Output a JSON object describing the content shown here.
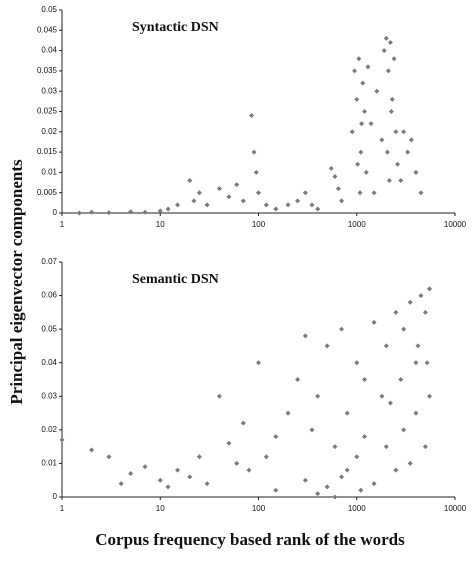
{
  "ylabel": "Principal eigenvector components",
  "xlabel": "Corpus frequency based rank of the words",
  "chart_data": [
    {
      "type": "scatter",
      "title": "Syntactic DSN",
      "color": "#7a7a7a",
      "xscale": "log",
      "xlim": [
        1,
        10000
      ],
      "xticks": [
        1,
        10,
        100,
        1000,
        10000
      ],
      "ylim": [
        0,
        0.05
      ],
      "yticks": [
        0,
        0.005,
        0.01,
        0.015,
        0.02,
        0.025,
        0.03,
        0.035,
        0.04,
        0.045,
        0.05
      ],
      "x": [
        1.5,
        2,
        3,
        5,
        7,
        10,
        12,
        15,
        20,
        22,
        25,
        30,
        40,
        50,
        60,
        70,
        85,
        90,
        95,
        100,
        120,
        150,
        200,
        250,
        300,
        350,
        400,
        550,
        600,
        650,
        700,
        900,
        950,
        1000,
        1050,
        1100,
        1150,
        1200,
        1250,
        1300,
        1400,
        1500,
        1600,
        1800,
        1900,
        2000,
        2100,
        2200,
        2300,
        2400,
        2500,
        2600,
        2800,
        3000,
        3300,
        3600,
        4000,
        4500,
        1020,
        1080,
        2050,
        2150,
        1120,
        2250
      ],
      "y": [
        0,
        0.0002,
        0.0001,
        0.0003,
        0.0002,
        0.0005,
        0.001,
        0.002,
        0.008,
        0.003,
        0.005,
        0.002,
        0.006,
        0.004,
        0.007,
        0.003,
        0.024,
        0.015,
        0.01,
        0.005,
        0.002,
        0.001,
        0.002,
        0.003,
        0.005,
        0.002,
        0.001,
        0.011,
        0.009,
        0.006,
        0.003,
        0.02,
        0.035,
        0.028,
        0.038,
        0.015,
        0.032,
        0.025,
        0.01,
        0.036,
        0.022,
        0.005,
        0.03,
        0.018,
        0.04,
        0.043,
        0.035,
        0.042,
        0.028,
        0.038,
        0.02,
        0.012,
        0.008,
        0.02,
        0.015,
        0.018,
        0.01,
        0.005,
        0.012,
        0.005,
        0.015,
        0.008,
        0.022,
        0.025
      ]
    },
    {
      "type": "scatter",
      "title": "Semantic DSN",
      "color": "#7a7a7a",
      "xscale": "log",
      "xlim": [
        1,
        10000
      ],
      "xticks": [
        1,
        10,
        100,
        1000,
        10000
      ],
      "ylim": [
        0,
        0.07
      ],
      "yticks": [
        0,
        0.01,
        0.02,
        0.03,
        0.04,
        0.05,
        0.06,
        0.07
      ],
      "x": [
        1,
        2,
        3,
        4,
        5,
        7,
        10,
        12,
        15,
        20,
        25,
        30,
        40,
        50,
        60,
        70,
        80,
        100,
        120,
        150,
        200,
        250,
        300,
        350,
        400,
        500,
        600,
        700,
        800,
        1000,
        1200,
        1500,
        1800,
        2000,
        2500,
        3000,
        3500,
        4000,
        4500,
        5000,
        5500,
        150,
        300,
        500,
        800,
        1000,
        1500,
        2000,
        2500,
        3000,
        3500,
        4000,
        5000,
        5500,
        400,
        700,
        1200,
        2200,
        2800,
        4200,
        5200,
        600,
        1100
      ],
      "y": [
        0.017,
        0.014,
        0.012,
        0.004,
        0.007,
        0.009,
        0.005,
        0.003,
        0.008,
        0.006,
        0.012,
        0.004,
        0.03,
        0.016,
        0.01,
        0.022,
        0.008,
        0.04,
        0.012,
        0.018,
        0.025,
        0.035,
        0.048,
        0.02,
        0.03,
        0.045,
        0.015,
        0.05,
        0.025,
        0.04,
        0.035,
        0.052,
        0.03,
        0.045,
        0.055,
        0.05,
        0.058,
        0.04,
        0.06,
        0.055,
        0.062,
        0.002,
        0.005,
        0.003,
        0.008,
        0.012,
        0.004,
        0.015,
        0.008,
        0.02,
        0.01,
        0.025,
        0.015,
        0.03,
        0.001,
        0.006,
        0.018,
        0.028,
        0.035,
        0.045,
        0.04,
        0,
        0.002
      ]
    }
  ]
}
